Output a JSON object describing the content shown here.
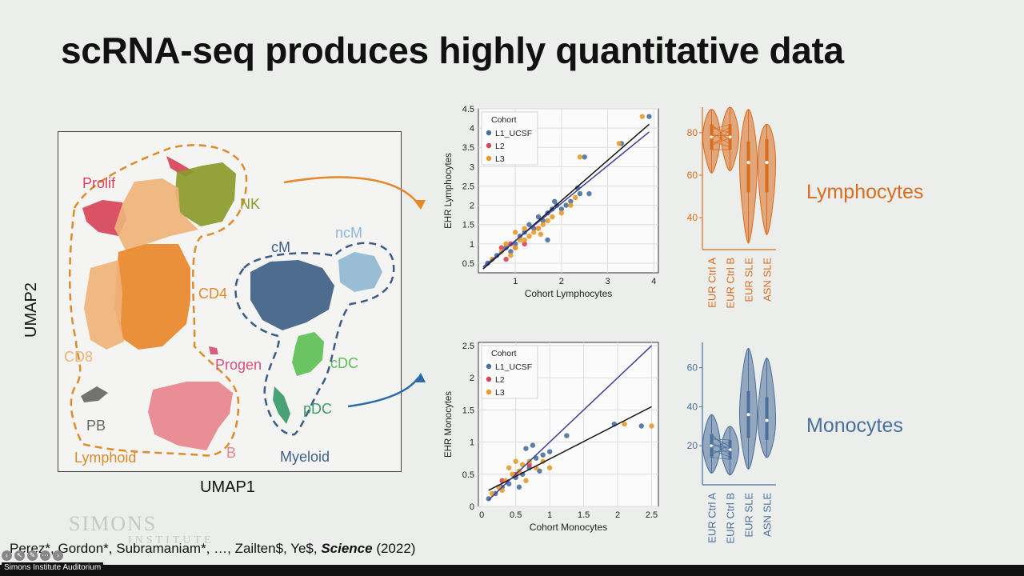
{
  "slide": {
    "title": "scRNA-seq produces highly quantitative data",
    "lymphocytes_label": "Lymphocytes",
    "monocytes_label": "Monocytes",
    "lymph_color": "#d96c1e",
    "mono_color": "#4a6f9b",
    "watermark_line1": "SIMONS",
    "watermark_line2": "INSTITUTE",
    "venue": "Simons Institute Auditorium"
  },
  "citation": {
    "authors": "Perez*, Gordon*, Subramaniam*, …, Zailten$, Ye$, ",
    "journal": "Science",
    "year": " (2022)"
  },
  "umap": {
    "xlabel": "UMAP1",
    "ylabel": "UMAP2",
    "clusters": [
      {
        "name": "Prolif",
        "color": "#d6435a"
      },
      {
        "name": "NK",
        "color": "#8a9a2a"
      },
      {
        "name": "CD4",
        "color": "#e8862a"
      },
      {
        "name": "CD8",
        "color": "#efb27a"
      },
      {
        "name": "Progen",
        "color": "#d84f7a"
      },
      {
        "name": "PB",
        "color": "#666666"
      },
      {
        "name": "B",
        "color": "#e8848e"
      },
      {
        "name": "Lymphoid",
        "color": "#d98a2a"
      },
      {
        "name": "cM",
        "color": "#3e5f86"
      },
      {
        "name": "ncM",
        "color": "#8fb7d3"
      },
      {
        "name": "cDC",
        "color": "#5cbf55"
      },
      {
        "name": "pDC",
        "color": "#3a9a6a"
      },
      {
        "name": "Myeloid",
        "color": "#3f5f88"
      }
    ]
  },
  "chart_data": [
    {
      "type": "scatter",
      "xlabel": "Cohort Lymphocytes",
      "ylabel": "EHR Lymphocytes",
      "xlim": [
        0.2,
        4.1
      ],
      "ylim": [
        0.25,
        4.5
      ],
      "xticks": [
        1,
        2,
        3,
        4
      ],
      "yticks": [
        0.5,
        1.0,
        1.5,
        2.0,
        2.5,
        3.0,
        3.5,
        4.0,
        4.5
      ],
      "legend_title": "Cohort",
      "legend_position": "top-left",
      "grid": true,
      "series": [
        {
          "name": "L1_UCSF",
          "color": "#4a6f9b",
          "points": [
            [
              0.4,
              0.5
            ],
            [
              0.6,
              0.7
            ],
            [
              0.8,
              0.9
            ],
            [
              1.0,
              1.0
            ],
            [
              1.2,
              1.3
            ],
            [
              1.4,
              1.4
            ],
            [
              1.5,
              1.7
            ],
            [
              1.6,
              1.6
            ],
            [
              1.7,
              1.8
            ],
            [
              1.8,
              1.9
            ],
            [
              1.9,
              2.0
            ],
            [
              2.0,
              1.9
            ],
            [
              2.1,
              2.0
            ],
            [
              2.2,
              2.1
            ],
            [
              2.4,
              2.3
            ],
            [
              2.6,
              2.3
            ],
            [
              1.3,
              1.5
            ],
            [
              1.1,
              1.2
            ],
            [
              0.9,
              0.8
            ],
            [
              1.7,
              1.1
            ],
            [
              2.5,
              3.25
            ],
            [
              3.3,
              3.6
            ],
            [
              3.9,
              4.3
            ],
            [
              1.85,
              2.1
            ],
            [
              2.35,
              2.45
            ]
          ]
        },
        {
          "name": "L2",
          "color": "#d6435a",
          "points": [
            [
              0.7,
              0.9
            ],
            [
              0.8,
              0.6
            ],
            [
              1.0,
              0.9
            ],
            [
              1.2,
              1.0
            ],
            [
              0.9,
              1.0
            ],
            [
              1.5,
              1.4
            ]
          ]
        },
        {
          "name": "L3",
          "color": "#e89a2a",
          "points": [
            [
              0.5,
              0.6
            ],
            [
              0.7,
              0.8
            ],
            [
              0.9,
              0.7
            ],
            [
              1.0,
              0.9
            ],
            [
              1.1,
              1.1
            ],
            [
              1.2,
              1.1
            ],
            [
              1.3,
              1.2
            ],
            [
              1.4,
              1.3
            ],
            [
              1.5,
              1.4
            ],
            [
              1.6,
              1.5
            ],
            [
              1.7,
              1.6
            ],
            [
              1.8,
              1.7
            ],
            [
              2.0,
              1.8
            ],
            [
              2.2,
              2.0
            ],
            [
              2.3,
              2.2
            ],
            [
              2.4,
              3.25
            ],
            [
              3.25,
              3.6
            ],
            [
              3.75,
              4.3
            ],
            [
              1.0,
              1.3
            ],
            [
              1.2,
              1.4
            ],
            [
              0.8,
              1.0
            ],
            [
              1.55,
              1.25
            ]
          ]
        }
      ],
      "fits": [
        {
          "color": "#111111",
          "from": [
            0.3,
            0.35
          ],
          "to": [
            3.9,
            4.1
          ]
        },
        {
          "color": "#3a3f9a",
          "from": [
            0.3,
            0.4
          ],
          "to": [
            3.9,
            3.9
          ]
        }
      ]
    },
    {
      "type": "scatter",
      "xlabel": "Cohort Monocytes",
      "ylabel": "EHR Monocytes",
      "xlim": [
        -0.05,
        2.6
      ],
      "ylim": [
        0.0,
        2.55
      ],
      "xticks": [
        0.0,
        0.5,
        1.0,
        1.5,
        2.0,
        2.5
      ],
      "yticks": [
        0.0,
        0.5,
        1.0,
        1.5,
        2.0,
        2.5
      ],
      "legend_title": "Cohort",
      "legend_position": "top-left",
      "grid": true,
      "series": [
        {
          "name": "L1_UCSF",
          "color": "#4a6f9b",
          "points": [
            [
              0.1,
              0.12
            ],
            [
              0.2,
              0.2
            ],
            [
              0.3,
              0.3
            ],
            [
              0.4,
              0.35
            ],
            [
              0.5,
              0.45
            ],
            [
              0.6,
              0.5
            ],
            [
              0.7,
              0.6
            ],
            [
              0.8,
              0.75
            ],
            [
              0.9,
              0.8
            ],
            [
              1.0,
              0.85
            ],
            [
              0.65,
              0.9
            ],
            [
              0.75,
              0.95
            ],
            [
              1.25,
              1.1
            ],
            [
              1.95,
              1.28
            ],
            [
              2.35,
              1.25
            ],
            [
              0.55,
              0.3
            ],
            [
              0.85,
              0.55
            ]
          ]
        },
        {
          "name": "L2",
          "color": "#d6435a",
          "points": [
            [
              0.3,
              0.4
            ],
            [
              0.5,
              0.5
            ],
            [
              0.7,
              0.65
            ]
          ]
        },
        {
          "name": "L3",
          "color": "#e89a2a",
          "points": [
            [
              0.15,
              0.2
            ],
            [
              0.25,
              0.3
            ],
            [
              0.35,
              0.4
            ],
            [
              0.45,
              0.5
            ],
            [
              0.55,
              0.55
            ],
            [
              0.6,
              0.65
            ],
            [
              0.7,
              0.7
            ],
            [
              0.8,
              0.6
            ],
            [
              0.9,
              0.7
            ],
            [
              1.0,
              0.6
            ],
            [
              0.4,
              0.6
            ],
            [
              0.5,
              0.7
            ],
            [
              0.3,
              0.25
            ],
            [
              0.65,
              0.4
            ],
            [
              2.1,
              1.28
            ],
            [
              2.5,
              1.25
            ]
          ]
        }
      ],
      "fits": [
        {
          "color": "#111111",
          "from": [
            0.1,
            0.25
          ],
          "to": [
            2.5,
            1.55
          ]
        },
        {
          "color": "#3a3f9a",
          "from": [
            0.1,
            0.1
          ],
          "to": [
            2.5,
            2.5
          ]
        }
      ]
    },
    {
      "type": "violin",
      "yticks": [
        40,
        60,
        80
      ],
      "ylim": [
        25,
        92
      ],
      "color": "#d96c1e",
      "categories": [
        "EUR Ctrl A",
        "EUR Ctrl B",
        "EUR SLE",
        "ASN SLE"
      ],
      "distributions": [
        {
          "min": 61,
          "q1": 72,
          "median": 78,
          "q3": 84,
          "max": 91
        },
        {
          "min": 62,
          "q1": 72,
          "median": 78,
          "q3": 84,
          "max": 92
        },
        {
          "min": 28,
          "q1": 52,
          "median": 66,
          "q3": 76,
          "max": 91
        },
        {
          "min": 32,
          "q1": 52,
          "median": 66,
          "q3": 77,
          "max": 84
        }
      ]
    },
    {
      "type": "violin",
      "yticks": [
        20,
        40,
        60
      ],
      "ylim": [
        0,
        73
      ],
      "color": "#4a6f9b",
      "categories": [
        "EUR Ctrl A",
        "EUR Ctrl B",
        "EUR SLE",
        "ASN SLE"
      ],
      "distributions": [
        {
          "min": 6,
          "q1": 14,
          "median": 20,
          "q3": 26,
          "max": 36
        },
        {
          "min": 5,
          "q1": 13,
          "median": 18,
          "q3": 23,
          "max": 30
        },
        {
          "min": 8,
          "q1": 24,
          "median": 36,
          "q3": 48,
          "max": 70
        },
        {
          "min": 14,
          "q1": 23,
          "median": 33,
          "q3": 45,
          "max": 65
        }
      ]
    }
  ]
}
